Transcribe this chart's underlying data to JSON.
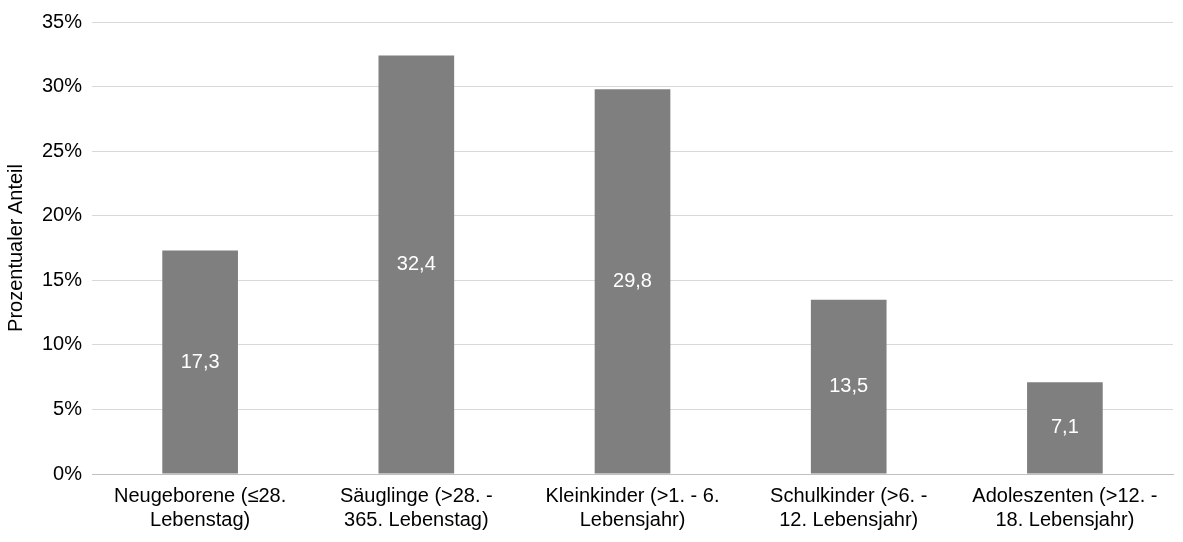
{
  "chart_data": {
    "type": "bar",
    "ylabel": "Prozentualer Anteil",
    "categories": [
      "Neugeborene (≤28. Lebenstag)",
      "Säuglinge (>28. - 365. Lebenstag)",
      "Kleinkinder (>1. - 6. Lebensjahr)",
      "Schulkinder (>6. - 12. Lebensjahr)",
      "Adoleszenten (>12. - 18. Lebensjahr)"
    ],
    "values": [
      17.3,
      32.4,
      29.8,
      13.5,
      7.1
    ],
    "value_labels": [
      "17,3",
      "32,4",
      "29,8",
      "13,5",
      "7,1"
    ],
    "color": "#7f7f7f",
    "ylim": [
      0,
      35
    ],
    "yticks": [
      {
        "value": 0,
        "label": "0%"
      },
      {
        "value": 5,
        "label": "5%"
      },
      {
        "value": 10,
        "label": "10%"
      },
      {
        "value": 15,
        "label": "15%"
      },
      {
        "value": 20,
        "label": "20%"
      },
      {
        "value": 25,
        "label": "25%"
      },
      {
        "value": 30,
        "label": "30%"
      },
      {
        "value": 35,
        "label": "35%"
      }
    ],
    "grid": "y",
    "legend": false
  }
}
